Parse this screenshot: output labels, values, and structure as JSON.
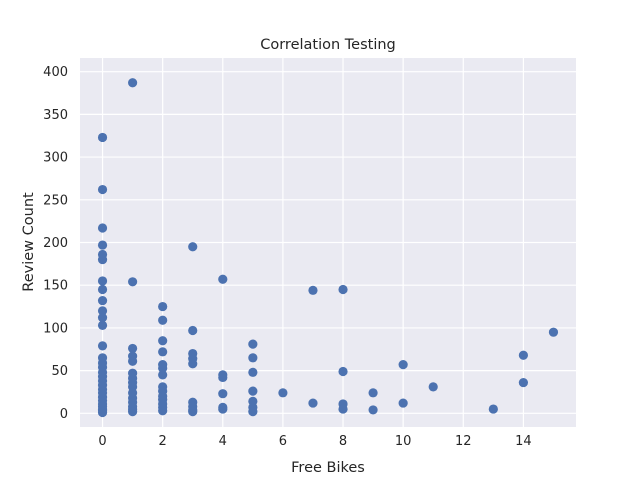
{
  "chart_data": {
    "type": "scatter",
    "title": "Correlation Testing",
    "xlabel": "Free Bikes",
    "ylabel": "Review Count",
    "xlim": [
      -0.75,
      15.75
    ],
    "ylim": [
      -16,
      416
    ],
    "xticks": [
      0,
      2,
      4,
      6,
      8,
      10,
      12,
      14
    ],
    "yticks": [
      0,
      50,
      100,
      150,
      200,
      250,
      300,
      350,
      400
    ],
    "grid": true,
    "background": "#eaeaf2",
    "grid_color": "#ffffff",
    "marker_color": "#4c72b0",
    "points": [
      [
        0,
        323
      ],
      [
        0,
        262
      ],
      [
        0,
        217
      ],
      [
        0,
        197
      ],
      [
        0,
        186
      ],
      [
        0,
        180
      ],
      [
        0,
        155
      ],
      [
        0,
        145
      ],
      [
        0,
        132
      ],
      [
        0,
        120
      ],
      [
        0,
        112
      ],
      [
        0,
        103
      ],
      [
        0,
        79
      ],
      [
        0,
        65
      ],
      [
        0,
        59
      ],
      [
        0,
        54
      ],
      [
        0,
        48
      ],
      [
        0,
        43
      ],
      [
        0,
        38
      ],
      [
        0,
        33
      ],
      [
        0,
        28
      ],
      [
        0,
        24
      ],
      [
        0,
        19
      ],
      [
        0,
        15
      ],
      [
        0,
        11
      ],
      [
        0,
        8
      ],
      [
        0,
        5
      ],
      [
        0,
        3
      ],
      [
        0,
        1
      ],
      [
        1,
        387
      ],
      [
        1,
        154
      ],
      [
        1,
        76
      ],
      [
        1,
        67
      ],
      [
        1,
        61
      ],
      [
        1,
        47
      ],
      [
        1,
        41
      ],
      [
        1,
        36
      ],
      [
        1,
        31
      ],
      [
        1,
        24
      ],
      [
        1,
        18
      ],
      [
        1,
        13
      ],
      [
        1,
        8
      ],
      [
        1,
        5
      ],
      [
        1,
        2
      ],
      [
        2,
        125
      ],
      [
        2,
        109
      ],
      [
        2,
        85
      ],
      [
        2,
        72
      ],
      [
        2,
        57
      ],
      [
        2,
        53
      ],
      [
        2,
        45
      ],
      [
        2,
        31
      ],
      [
        2,
        26
      ],
      [
        2,
        20
      ],
      [
        2,
        16
      ],
      [
        2,
        11
      ],
      [
        2,
        7
      ],
      [
        2,
        3
      ],
      [
        3,
        195
      ],
      [
        3,
        97
      ],
      [
        3,
        70
      ],
      [
        3,
        64
      ],
      [
        3,
        58
      ],
      [
        3,
        13
      ],
      [
        3,
        8
      ],
      [
        3,
        4
      ],
      [
        3,
        2
      ],
      [
        4,
        157
      ],
      [
        4,
        45
      ],
      [
        4,
        42
      ],
      [
        4,
        23
      ],
      [
        4,
        7
      ],
      [
        4,
        5
      ],
      [
        5,
        81
      ],
      [
        5,
        65
      ],
      [
        5,
        48
      ],
      [
        5,
        26
      ],
      [
        5,
        14
      ],
      [
        5,
        7
      ],
      [
        5,
        2
      ],
      [
        6,
        24
      ],
      [
        7,
        144
      ],
      [
        7,
        12
      ],
      [
        8,
        145
      ],
      [
        8,
        49
      ],
      [
        8,
        11
      ],
      [
        8,
        5
      ],
      [
        9,
        24
      ],
      [
        9,
        4
      ],
      [
        10,
        57
      ],
      [
        10,
        12
      ],
      [
        11,
        31
      ],
      [
        13,
        5
      ],
      [
        14,
        68
      ],
      [
        14,
        36
      ],
      [
        15,
        95
      ]
    ]
  }
}
